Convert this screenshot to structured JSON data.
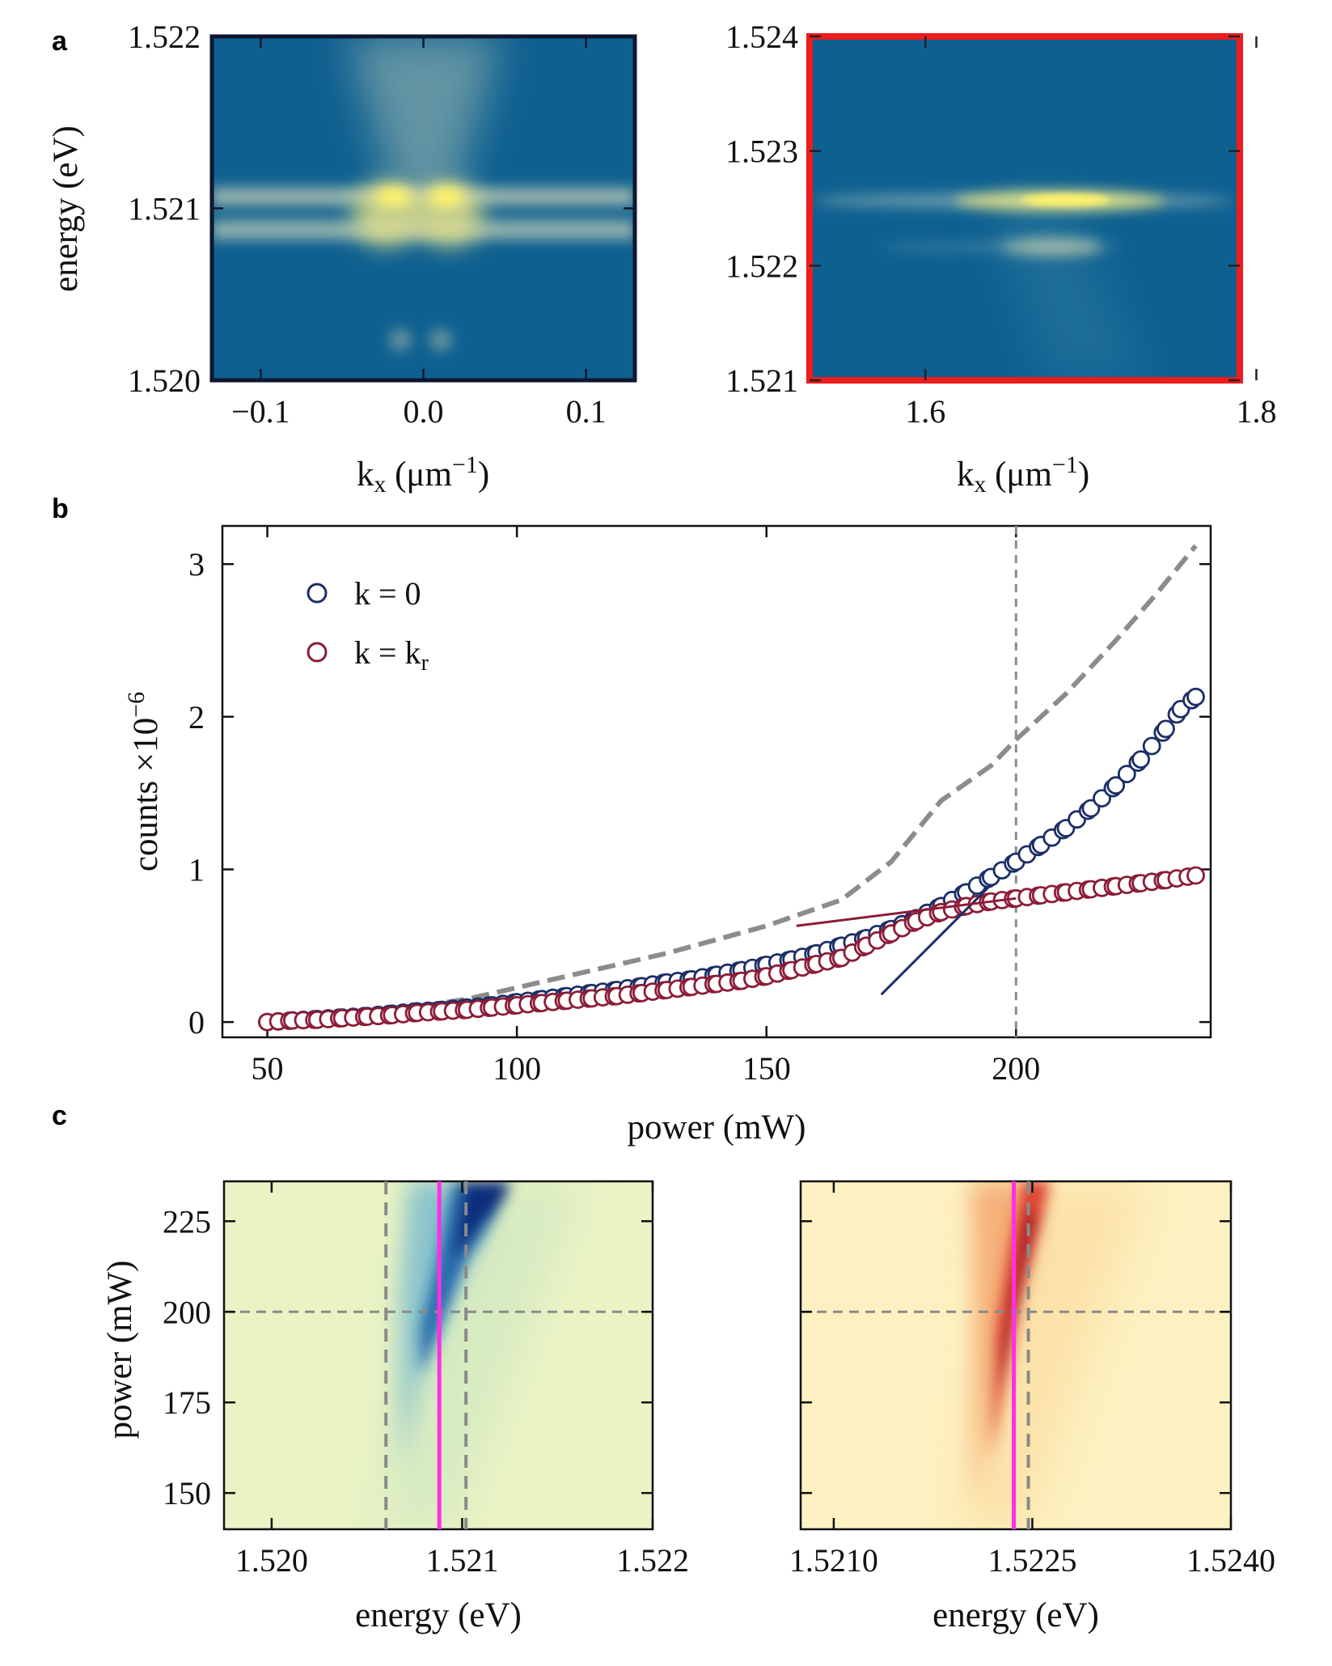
{
  "panels": {
    "a": "a",
    "b": "b",
    "c": "c"
  },
  "chart_data": [
    {
      "id": "a-left",
      "type": "heatmap",
      "xlabel": "k",
      "xlabel_sub": "x",
      "xlabel_unit": " (μm",
      "xlabel_exp": "−1",
      "xlabel_close": ")",
      "ylabel": "energy (eV)",
      "xlim": [
        -0.13,
        0.13
      ],
      "ylim": [
        1.52,
        1.522
      ],
      "xticks": [
        -0.1,
        0.0,
        0.1
      ],
      "xtick_labels": [
        "−0.1",
        "0.0",
        "0.1"
      ],
      "yticks": [
        1.52,
        1.521,
        1.522
      ],
      "ytick_labels": [
        "1.520",
        "1.521",
        "1.522"
      ],
      "frame_color": "#0f1630",
      "colors": {
        "background": "#0e6090",
        "bright": "#fff36a"
      }
    },
    {
      "id": "a-right",
      "type": "heatmap",
      "xlabel": "k",
      "xlabel_sub": "x",
      "xlabel_unit": " (μm",
      "xlabel_exp": "−1",
      "xlabel_close": ")",
      "xlim": [
        1.53,
        1.79
      ],
      "ylim": [
        1.521,
        1.524
      ],
      "xticks": [
        1.6,
        1.8
      ],
      "xtick_labels": [
        "1.6",
        "1.8"
      ],
      "yticks": [
        1.521,
        1.522,
        1.523,
        1.524
      ],
      "ytick_labels": [
        "1.521",
        "1.522",
        "1.523",
        "1.524"
      ],
      "frame_color": "#ee1c1c",
      "colors": {
        "background": "#0e6090",
        "bright": "#fff36a"
      }
    },
    {
      "id": "b",
      "type": "scatter",
      "xlabel": "power (mW)",
      "ylabel": "counts ×10",
      "ylabel_exp": "−6",
      "xlim": [
        41,
        239
      ],
      "ylim": [
        -0.1,
        3.25
      ],
      "xticks": [
        50,
        100,
        150,
        200
      ],
      "yticks": [
        0,
        1,
        2,
        3
      ],
      "vline_x": 200,
      "legend_position": "upper-left",
      "series": [
        {
          "name": "k = 0",
          "color": "#1c2e66",
          "marker": "open-circle",
          "points": [
            [
              50,
              0.0
            ],
            [
              55,
              0.01
            ],
            [
              60,
              0.02
            ],
            [
              65,
              0.03
            ],
            [
              70,
              0.04
            ],
            [
              75,
              0.055
            ],
            [
              80,
              0.07
            ],
            [
              85,
              0.08
            ],
            [
              90,
              0.095
            ],
            [
              95,
              0.11
            ],
            [
              100,
              0.13
            ],
            [
              105,
              0.15
            ],
            [
              110,
              0.17
            ],
            [
              115,
              0.19
            ],
            [
              120,
              0.21
            ],
            [
              125,
              0.235
            ],
            [
              130,
              0.26
            ],
            [
              135,
              0.28
            ],
            [
              140,
              0.31
            ],
            [
              145,
              0.34
            ],
            [
              150,
              0.375
            ],
            [
              155,
              0.41
            ],
            [
              160,
              0.45
            ],
            [
              165,
              0.5
            ],
            [
              170,
              0.55
            ],
            [
              175,
              0.61
            ],
            [
              180,
              0.68
            ],
            [
              185,
              0.76
            ],
            [
              190,
              0.85
            ],
            [
              195,
              0.95
            ],
            [
              200,
              1.05
            ],
            [
              205,
              1.16
            ],
            [
              210,
              1.27
            ],
            [
              215,
              1.4
            ],
            [
              220,
              1.55
            ],
            [
              225,
              1.72
            ],
            [
              230,
              1.92
            ],
            [
              233,
              2.05
            ],
            [
              236,
              2.13
            ]
          ]
        },
        {
          "name": "k = k",
          "name_sub": "r",
          "color": "#8c1c37",
          "marker": "open-circle",
          "points": [
            [
              50,
              0.0
            ],
            [
              55,
              0.01
            ],
            [
              60,
              0.015
            ],
            [
              65,
              0.025
            ],
            [
              70,
              0.035
            ],
            [
              75,
              0.045
            ],
            [
              80,
              0.06
            ],
            [
              85,
              0.07
            ],
            [
              90,
              0.08
            ],
            [
              95,
              0.095
            ],
            [
              100,
              0.11
            ],
            [
              105,
              0.125
            ],
            [
              110,
              0.14
            ],
            [
              115,
              0.155
            ],
            [
              120,
              0.17
            ],
            [
              125,
              0.19
            ],
            [
              130,
              0.21
            ],
            [
              135,
              0.23
            ],
            [
              140,
              0.25
            ],
            [
              145,
              0.27
            ],
            [
              150,
              0.3
            ],
            [
              155,
              0.34
            ],
            [
              160,
              0.38
            ],
            [
              165,
              0.42
            ],
            [
              170,
              0.5
            ],
            [
              175,
              0.58
            ],
            [
              180,
              0.66
            ],
            [
              185,
              0.72
            ],
            [
              190,
              0.76
            ],
            [
              195,
              0.79
            ],
            [
              200,
              0.81
            ],
            [
              205,
              0.83
            ],
            [
              210,
              0.85
            ],
            [
              215,
              0.87
            ],
            [
              220,
              0.89
            ],
            [
              225,
              0.91
            ],
            [
              230,
              0.93
            ],
            [
              236,
              0.96
            ]
          ]
        },
        {
          "name": "",
          "style": "dashed-line",
          "color": "#8c8c8c",
          "points": [
            [
              55,
              0.0
            ],
            [
              70,
              0.05
            ],
            [
              90,
              0.15
            ],
            [
              110,
              0.3
            ],
            [
              130,
              0.45
            ],
            [
              150,
              0.63
            ],
            [
              165,
              0.8
            ],
            [
              175,
              1.05
            ],
            [
              185,
              1.45
            ],
            [
              195,
              1.68
            ],
            [
              200,
              1.85
            ],
            [
              210,
              2.15
            ],
            [
              220,
              2.5
            ],
            [
              228,
              2.8
            ],
            [
              236,
              3.12
            ]
          ]
        }
      ],
      "fit_lines": [
        {
          "color": "#1c2e66",
          "points": [
            [
              173,
              0.18
            ],
            [
              195,
              0.9
            ]
          ]
        },
        {
          "color": "#8c1c37",
          "points": [
            [
              156,
              0.63
            ],
            [
              200,
              0.81
            ]
          ]
        }
      ]
    },
    {
      "id": "c-left",
      "type": "heatmap",
      "xlabel": "energy (eV)",
      "ylabel": "power (mW)",
      "xlim": [
        1.51975,
        1.522
      ],
      "ylim": [
        140,
        236
      ],
      "xticks": [
        1.52,
        1.521,
        1.522
      ],
      "xtick_labels": [
        "1.520",
        "1.521",
        "1.522"
      ],
      "yticks": [
        150,
        175,
        200,
        225
      ],
      "vlines_dashed": [
        1.5206,
        1.52102
      ],
      "vline_magenta": 1.52088,
      "hline_dashed": 200,
      "colors": {
        "background": "#eaf3c4",
        "intense": "#0d2f7d",
        "marker_line": "#ff2fe6"
      }
    },
    {
      "id": "c-right",
      "type": "heatmap",
      "xlabel": "energy (eV)",
      "xlim": [
        1.52075,
        1.524
      ],
      "ylim": [
        140,
        236
      ],
      "xticks": [
        1.521,
        1.5225,
        1.524
      ],
      "xtick_labels": [
        "1.5210",
        "1.5225",
        "1.5240"
      ],
      "yticks": [
        150,
        175,
        200,
        225
      ],
      "vlines_dashed": [
        1.52247
      ],
      "vline_magenta": 1.52236,
      "hline_dashed": 200,
      "colors": {
        "background": "#fdf1c1",
        "intense": "#8c0025",
        "marker_line": "#ff2fe6"
      }
    }
  ]
}
